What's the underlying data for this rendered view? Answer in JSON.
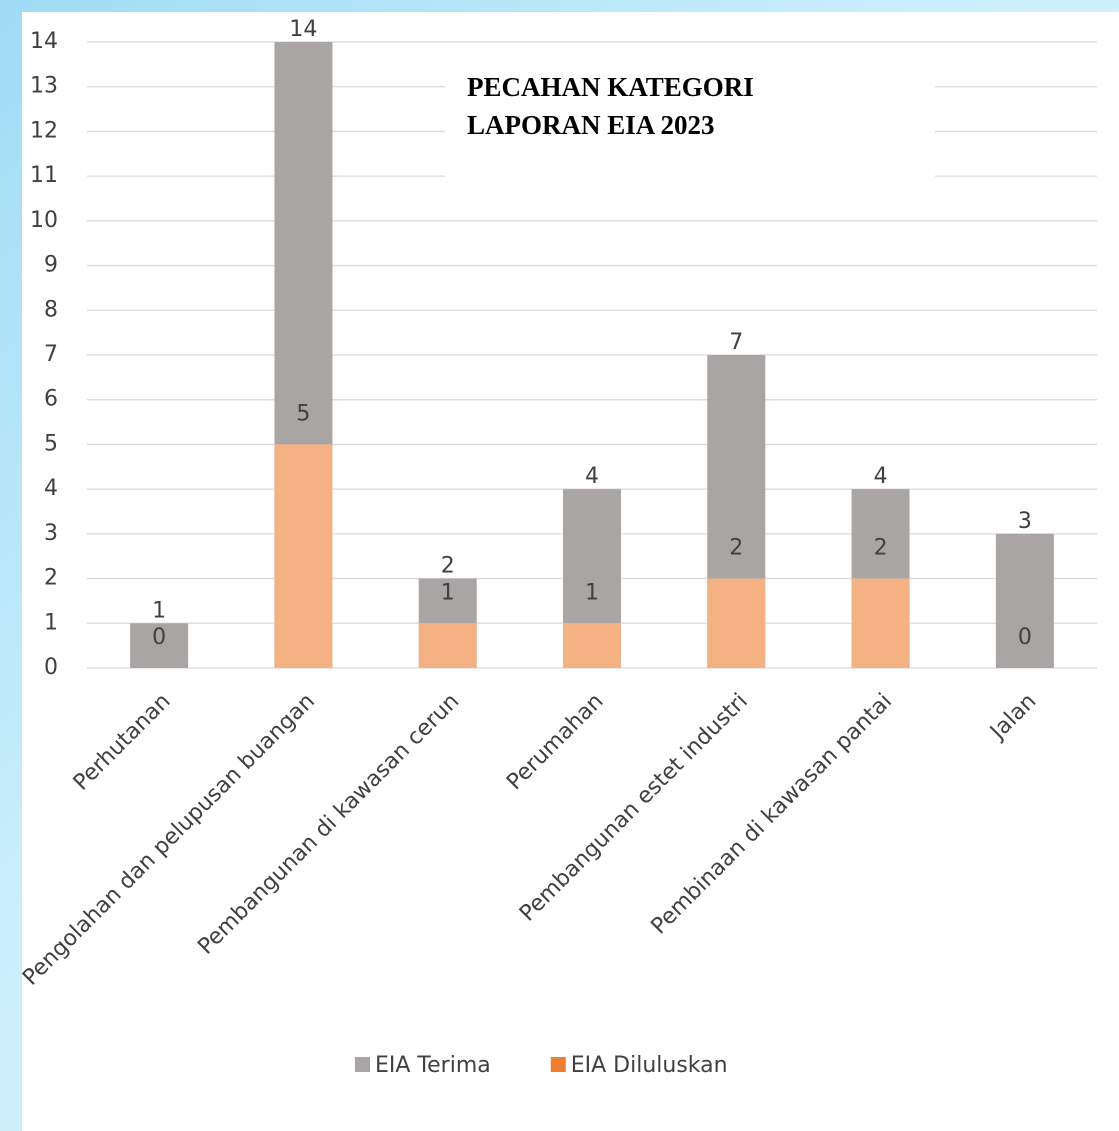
{
  "chart_data": {
    "type": "bar",
    "title": [
      "PECAHAN KATEGORI",
      "LAPORAN EIA 2023"
    ],
    "categories": [
      "Perhutanan",
      "Pengolahan dan pelupusan buangan",
      "Pembangunan di kawasan cerun",
      "Perumahan",
      "Pembangunan estet industri",
      "Pembinaan di kawasan pantai",
      "Jalan"
    ],
    "series": [
      {
        "name": "EIA Terima",
        "color": "#a9a5a5",
        "values": [
          1,
          14,
          2,
          4,
          7,
          4,
          3
        ]
      },
      {
        "name": "EIA Diluluskan",
        "color": "#ed7d31",
        "values": [
          0,
          5,
          1,
          1,
          2,
          2,
          0
        ]
      }
    ],
    "ylim": [
      0,
      14
    ],
    "yticks": [
      0,
      1,
      2,
      3,
      4,
      5,
      6,
      7,
      8,
      9,
      10,
      11,
      12,
      13,
      14
    ],
    "grid": true,
    "legend": "bottom"
  }
}
